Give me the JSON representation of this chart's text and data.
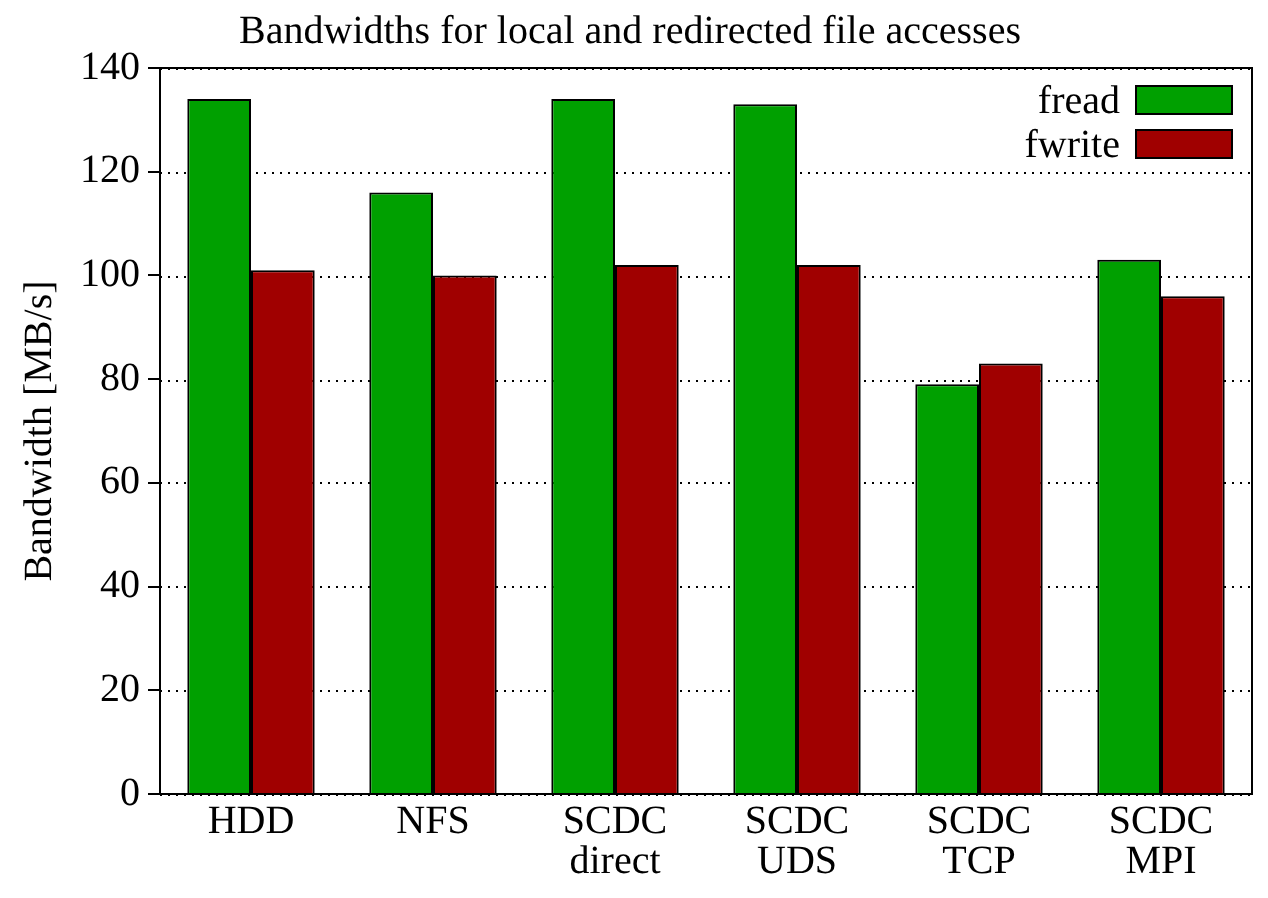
{
  "chart_data": {
    "type": "bar",
    "title": "Bandwidths for local and redirected file accesses",
    "ylabel": "Bandwidth [MB/s]",
    "categories": [
      "HDD",
      "NFS",
      "SCDC\ndirect",
      "SCDC\nUDS",
      "SCDC\nTCP",
      "SCDC\nMPI"
    ],
    "series": [
      {
        "name": "fread",
        "color": "#00a000",
        "values": [
          134,
          116,
          134,
          133,
          79,
          103
        ]
      },
      {
        "name": "fwrite",
        "color": "#a00000",
        "values": [
          101,
          100,
          102,
          102,
          83,
          96
        ]
      }
    ],
    "ylim": [
      0,
      140
    ],
    "yticks": [
      0,
      20,
      40,
      60,
      80,
      100,
      120,
      140
    ],
    "grid": "y",
    "legend": "top right"
  }
}
